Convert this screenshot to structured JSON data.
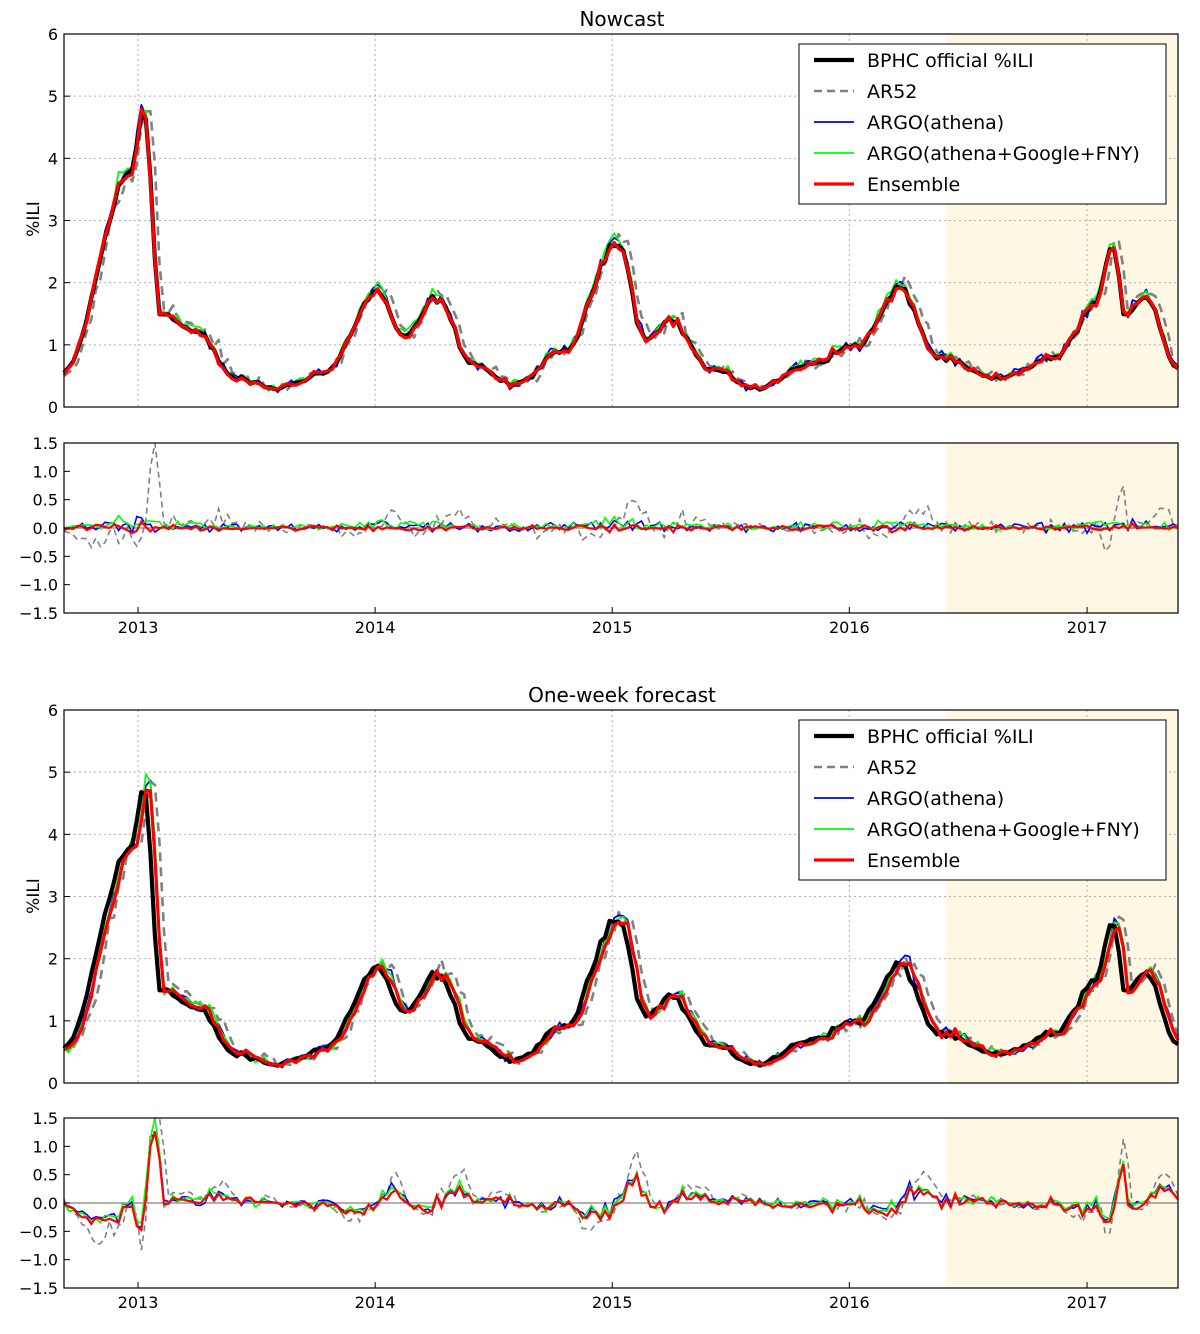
{
  "chart_data": [
    {
      "type": "line",
      "title": "Nowcast",
      "ylabel": "%ILI",
      "x_range": [
        "2012-09-09",
        "2017-05-21"
      ],
      "ylim": [
        0,
        6
      ],
      "yticks": [
        "0",
        "1",
        "2",
        "3",
        "4",
        "5",
        "6"
      ],
      "xticks": [
        "2013",
        "2014",
        "2015",
        "2016",
        "2017"
      ],
      "grid": true,
      "legend_position": "top-right",
      "highlight_region": [
        "2016-05-29",
        "2017-05-21"
      ],
      "highlight_color": "#fdf7e3",
      "series": [
        {
          "name": "BPHC official %ILI",
          "color": "#000000",
          "style": "solid-thick"
        },
        {
          "name": "AR52",
          "color": "#808080",
          "style": "dashed"
        },
        {
          "name": "ARGO(athena)",
          "color": "#0000ff",
          "style": "solid"
        },
        {
          "name": "ARGO(athena+Google+FNY)",
          "color": "#00ff00",
          "style": "solid"
        },
        {
          "name": "Ensemble",
          "color": "#ff0000",
          "style": "solid-thick"
        }
      ],
      "reference_points": {
        "BPHC official %ILI": [
          [
            "2012-09-09",
            0.55
          ],
          [
            "2012-12-20",
            3.75
          ],
          [
            "2013-01-10",
            4.8
          ],
          [
            "2013-02-05",
            1.5
          ],
          [
            "2013-04-01",
            1.2
          ],
          [
            "2013-06-01",
            0.45
          ],
          [
            "2013-08-01",
            0.3
          ],
          [
            "2013-10-15",
            0.55
          ],
          [
            "2014-01-05",
            1.85
          ],
          [
            "2014-02-15",
            1.1
          ],
          [
            "2014-04-05",
            1.75
          ],
          [
            "2014-06-01",
            0.7
          ],
          [
            "2014-08-01",
            0.35
          ],
          [
            "2014-10-20",
            0.9
          ],
          [
            "2015-01-10",
            2.7
          ],
          [
            "2015-02-20",
            1.1
          ],
          [
            "2015-04-01",
            1.4
          ],
          [
            "2015-06-01",
            0.6
          ],
          [
            "2015-08-15",
            0.3
          ],
          [
            "2015-11-01",
            0.7
          ],
          [
            "2016-01-15",
            1.0
          ],
          [
            "2016-03-20",
            1.9
          ],
          [
            "2016-05-15",
            0.8
          ],
          [
            "2016-08-15",
            0.45
          ],
          [
            "2016-11-15",
            0.8
          ],
          [
            "2017-01-10",
            1.6
          ],
          [
            "2017-02-10",
            2.5
          ],
          [
            "2017-03-01",
            1.5
          ],
          [
            "2017-04-01",
            1.8
          ],
          [
            "2017-05-21",
            0.6
          ]
        ]
      }
    },
    {
      "type": "line",
      "title": "",
      "ylabel": "",
      "x_range": [
        "2012-09-09",
        "2017-05-21"
      ],
      "ylim": [
        -1.5,
        1.5
      ],
      "yticks": [
        "−1.5",
        "−1.0",
        "−0.5",
        "0.0",
        "0.5",
        "1.0",
        "1.5"
      ],
      "xticks": [
        "2013",
        "2014",
        "2015",
        "2016",
        "2017"
      ],
      "description_series": "residuals of AR52, ARGO(athena), ARGO(athena+Google+FNY), Ensemble vs BPHC official %ILI (Nowcast)"
    },
    {
      "type": "line",
      "title": "One-week forecast",
      "ylabel": "%ILI",
      "x_range": [
        "2012-09-09",
        "2017-05-21"
      ],
      "ylim": [
        0,
        6
      ],
      "yticks": [
        "0",
        "1",
        "2",
        "3",
        "4",
        "5",
        "6"
      ],
      "xticks": [
        "2013",
        "2014",
        "2015",
        "2016",
        "2017"
      ],
      "grid": true,
      "legend_position": "top-right",
      "highlight_region": [
        "2016-05-29",
        "2017-05-21"
      ],
      "highlight_color": "#fdf7e3",
      "series": [
        {
          "name": "BPHC official %ILI",
          "color": "#000000",
          "style": "solid-thick"
        },
        {
          "name": "AR52",
          "color": "#808080",
          "style": "dashed"
        },
        {
          "name": "ARGO(athena)",
          "color": "#0000ff",
          "style": "solid"
        },
        {
          "name": "ARGO(athena+Google+FNY)",
          "color": "#00ff00",
          "style": "solid"
        },
        {
          "name": "Ensemble",
          "color": "#ff0000",
          "style": "solid-thick"
        }
      ]
    },
    {
      "type": "line",
      "title": "",
      "ylabel": "",
      "x_range": [
        "2012-09-09",
        "2017-05-21"
      ],
      "ylim": [
        -1.5,
        1.5
      ],
      "yticks": [
        "−1.5",
        "−1.0",
        "−0.5",
        "0.0",
        "0.5",
        "1.0",
        "1.5"
      ],
      "xticks": [
        "2013",
        "2014",
        "2015",
        "2016",
        "2017"
      ]
    }
  ]
}
